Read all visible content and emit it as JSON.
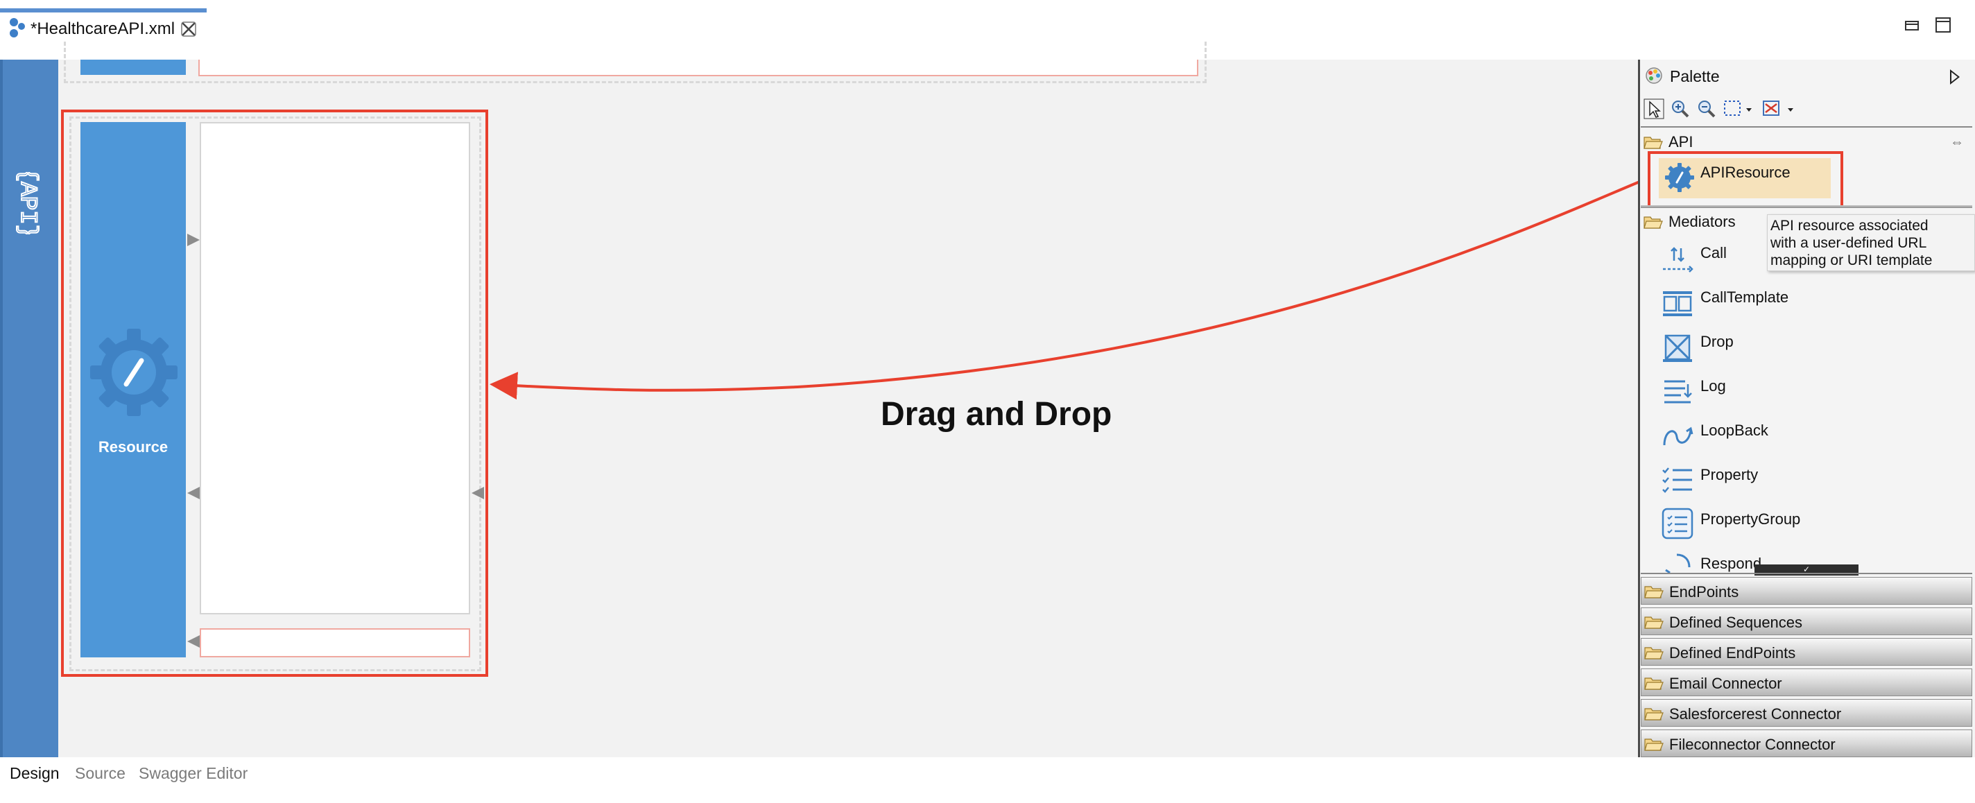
{
  "tab": {
    "title": "*HealthcareAPI.xml"
  },
  "canvas": {
    "api_logo_text": "{API}",
    "resource_label": "Resource",
    "annotation": "Drag and Drop"
  },
  "palette": {
    "title": "Palette",
    "api_section": {
      "label": "API",
      "item": "APIResource"
    },
    "tooltip": [
      "API resource associated",
      "with a user-defined URL",
      "mapping or URI template"
    ],
    "mediators_section": {
      "label": "Mediators",
      "items": [
        "Call",
        "CallTemplate",
        "Drop",
        "Log",
        "LoopBack",
        "Property",
        "PropertyGroup",
        "Respond"
      ]
    },
    "drawers": [
      "EndPoints",
      "Defined Sequences",
      "Defined EndPoints",
      "Email Connector",
      "Salesforcerest Connector",
      "Fileconnector Connector"
    ]
  },
  "bottom_tabs": {
    "design": "Design",
    "source": "Source",
    "swagger": "Swagger Editor",
    "active": "Design"
  },
  "colors": {
    "accent_blue": "#4e97d8",
    "highlight_red": "#e8402e",
    "selection": "#f6e2bb"
  }
}
